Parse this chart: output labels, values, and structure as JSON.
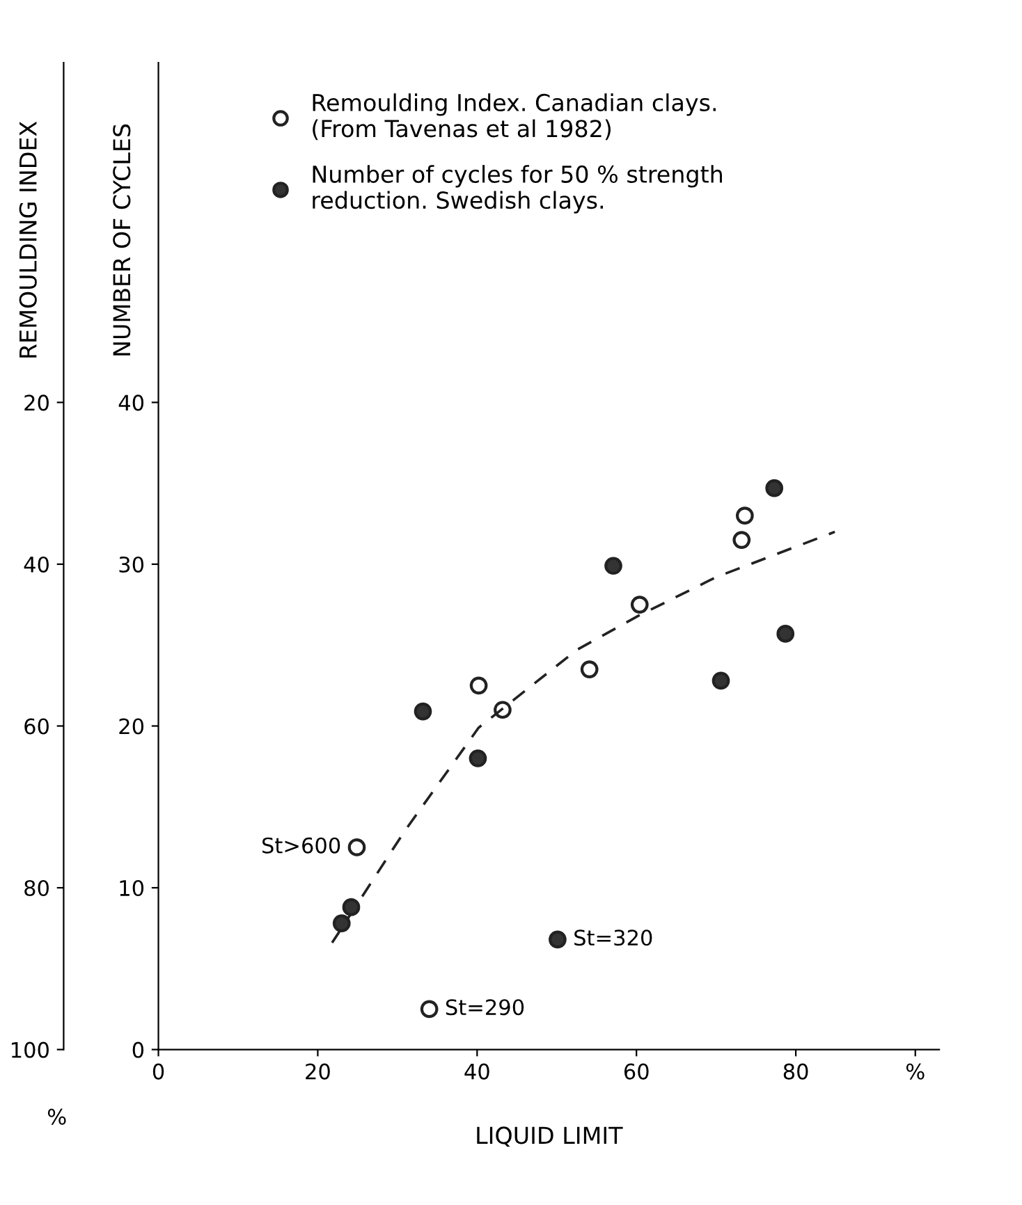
{
  "chart_data": {
    "type": "scatter",
    "xlabel": "LIQUID LIMIT",
    "ylabel": "NUMBER OF CYCLES",
    "y2label": "REMOULDING INDEX",
    "xlim": [
      0,
      98
    ],
    "xticks": [
      0,
      20,
      40,
      60,
      80,
      {
        "value": 95,
        "label": "%"
      }
    ],
    "ylim": [
      0,
      61
    ],
    "yticks": [
      0,
      10,
      20,
      30,
      40
    ],
    "y2lim": [
      100,
      -22
    ],
    "y2ticks": [
      20,
      40,
      60,
      80,
      100
    ],
    "grid": false,
    "legend": "top left",
    "marker": "circle",
    "series": [
      {
        "name": "Remoulding Index. Canadian clays.\n(From Tavenas et al 1982)",
        "color": "#ffffff",
        "axis": "y2",
        "x": [
          24.9,
          34.0,
          40.2,
          43.2,
          54.1,
          60.4,
          73.2,
          73.6
        ],
        "values": [
          75,
          95,
          55,
          58,
          53,
          45,
          37,
          34
        ]
      },
      {
        "name": "Number of cycles for 50 % strength\nreduction. Swedish clays.",
        "color": "#333333",
        "x": [
          23.0,
          24.2,
          33.2,
          40.1,
          50.1,
          57.1,
          70.6,
          77.3,
          78.7
        ],
        "values": [
          7.8,
          8.8,
          20.9,
          18.0,
          6.8,
          29.9,
          22.8,
          34.7,
          25.7
        ]
      },
      {
        "type": "line",
        "line_style": "dashed",
        "marker": "none",
        "color": "#222222",
        "x": [
          21.8,
          30.9,
          40.2,
          52.5,
          60.2,
          70.0,
          84.9
        ],
        "values": [
          6.6,
          13.5,
          19.9,
          24.7,
          26.8,
          29.2,
          32.0
        ]
      }
    ],
    "annotations": [
      {
        "text": "St>600",
        "x": 24.9,
        "y": 12.5
      },
      {
        "text": "St=290",
        "x": 34.0,
        "y": 2.5
      },
      {
        "text": "St=320",
        "x": 50.1,
        "y": 6.8
      },
      "%"
    ]
  }
}
